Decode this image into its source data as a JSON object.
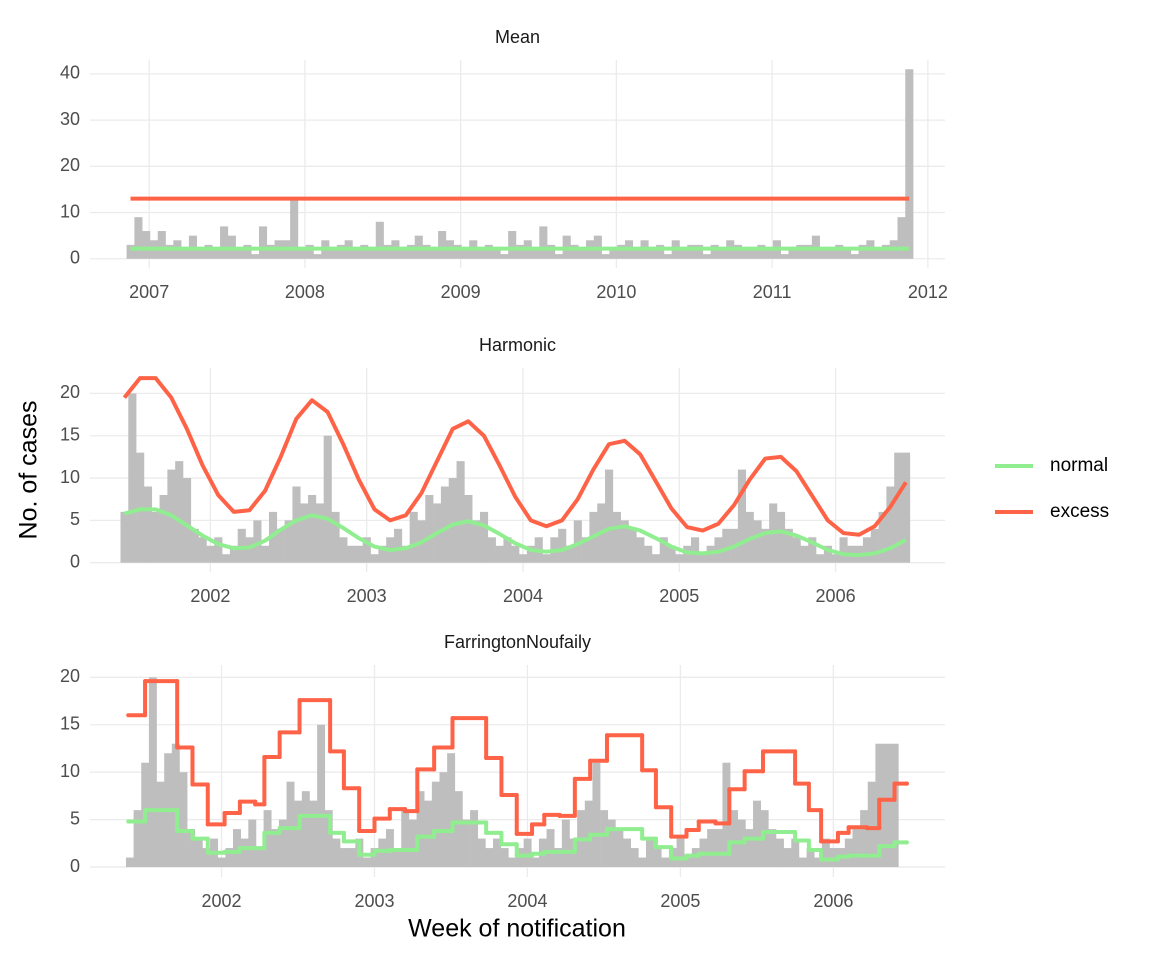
{
  "y_label": "No. of cases",
  "x_label": "Week of notification",
  "legend": [
    {
      "name": "normal",
      "color": "#90ee90"
    },
    {
      "name": "excess",
      "color": "#ff6347"
    }
  ],
  "chart_data": [
    {
      "type": "combo",
      "title": "Mean",
      "grid": true,
      "xlim": [
        2006.62,
        2012.11
      ],
      "xticks": [
        2007,
        2008,
        2009,
        2010,
        2011,
        2012
      ],
      "ylim": [
        -2,
        43
      ],
      "yticks": [
        0,
        10,
        20,
        30,
        40
      ],
      "bars": {
        "color": "#bebebe",
        "x": [
          2006.88,
          2006.93,
          2006.98,
          2007.03,
          2007.08,
          2007.13,
          2007.18,
          2007.23,
          2007.28,
          2007.33,
          2007.38,
          2007.43,
          2007.48,
          2007.53,
          2007.58,
          2007.63,
          2007.68,
          2007.73,
          2007.78,
          2007.83,
          2007.88,
          2007.93,
          2007.98,
          2008.03,
          2008.08,
          2008.13,
          2008.18,
          2008.23,
          2008.28,
          2008.33,
          2008.38,
          2008.43,
          2008.48,
          2008.53,
          2008.58,
          2008.63,
          2008.68,
          2008.73,
          2008.78,
          2008.83,
          2008.88,
          2008.93,
          2008.98,
          2009.03,
          2009.08,
          2009.13,
          2009.18,
          2009.23,
          2009.28,
          2009.33,
          2009.38,
          2009.43,
          2009.48,
          2009.53,
          2009.58,
          2009.63,
          2009.68,
          2009.73,
          2009.78,
          2009.83,
          2009.88,
          2009.93,
          2009.98,
          2010.03,
          2010.08,
          2010.13,
          2010.18,
          2010.23,
          2010.28,
          2010.33,
          2010.38,
          2010.43,
          2010.48,
          2010.53,
          2010.58,
          2010.63,
          2010.68,
          2010.73,
          2010.78,
          2010.83,
          2010.88,
          2010.93,
          2010.98,
          2011.03,
          2011.08,
          2011.13,
          2011.18,
          2011.23,
          2011.28,
          2011.33,
          2011.38,
          2011.43,
          2011.48,
          2011.53,
          2011.58,
          2011.63,
          2011.68,
          2011.73,
          2011.78,
          2011.83,
          2011.88
        ],
        "values": [
          3,
          9,
          6,
          4,
          6,
          3,
          4,
          2,
          5,
          2,
          3,
          2,
          7,
          5,
          2,
          3,
          1,
          7,
          3,
          4,
          4,
          13,
          2,
          3,
          1,
          4,
          2,
          3,
          4,
          2,
          3,
          2,
          8,
          3,
          4,
          2,
          3,
          5,
          3,
          2,
          6,
          4,
          3,
          2,
          4,
          2,
          3,
          2,
          1,
          6,
          3,
          4,
          2,
          7,
          3,
          1,
          5,
          3,
          2,
          4,
          5,
          1,
          2,
          3,
          4,
          2,
          4,
          2,
          3,
          1,
          4,
          2,
          3,
          3,
          1,
          3,
          2,
          4,
          3,
          2,
          2,
          3,
          2,
          4,
          1,
          2,
          3,
          3,
          5,
          2,
          2,
          3,
          2,
          1,
          3,
          4,
          2,
          3,
          4,
          9,
          41
        ]
      },
      "lines": [
        {
          "style": "line",
          "x": [
            2006.88,
            2011.88
          ],
          "values": [
            2.2,
            2.2
          ]
        },
        {
          "style": "line",
          "x": [
            2006.88,
            2011.88
          ],
          "values": [
            13,
            13
          ]
        }
      ]
    },
    {
      "type": "combo",
      "title": "Harmonic",
      "grid": true,
      "xlim": [
        2001.23,
        2006.7
      ],
      "xticks": [
        2002,
        2003,
        2004,
        2005,
        2006
      ],
      "ylim": [
        -1.1,
        23
      ],
      "yticks": [
        0,
        5,
        10,
        15,
        20
      ],
      "bars": {
        "color": "#bebebe",
        "x": [
          2001.45,
          2001.5,
          2001.55,
          2001.6,
          2001.65,
          2001.7,
          2001.75,
          2001.8,
          2001.85,
          2001.9,
          2001.95,
          2002.0,
          2002.05,
          2002.1,
          2002.15,
          2002.2,
          2002.25,
          2002.3,
          2002.35,
          2002.4,
          2002.45,
          2002.5,
          2002.55,
          2002.6,
          2002.65,
          2002.7,
          2002.75,
          2002.8,
          2002.85,
          2002.9,
          2002.95,
          2003.0,
          2003.05,
          2003.1,
          2003.15,
          2003.2,
          2003.25,
          2003.3,
          2003.35,
          2003.4,
          2003.45,
          2003.5,
          2003.55,
          2003.6,
          2003.65,
          2003.7,
          2003.75,
          2003.8,
          2003.85,
          2003.9,
          2003.95,
          2004.0,
          2004.05,
          2004.1,
          2004.15,
          2004.2,
          2004.25,
          2004.3,
          2004.35,
          2004.4,
          2004.45,
          2004.5,
          2004.55,
          2004.6,
          2004.65,
          2004.7,
          2004.75,
          2004.8,
          2004.85,
          2004.9,
          2004.95,
          2005.0,
          2005.05,
          2005.1,
          2005.15,
          2005.2,
          2005.25,
          2005.3,
          2005.35,
          2005.4,
          2005.45,
          2005.5,
          2005.55,
          2005.6,
          2005.65,
          2005.7,
          2005.75,
          2005.8,
          2005.85,
          2005.9,
          2005.95,
          2006.0,
          2006.05,
          2006.1,
          2006.15,
          2006.2,
          2006.25,
          2006.3,
          2006.35,
          2006.4,
          2006.45
        ],
        "values": [
          6,
          20,
          13,
          9,
          6,
          8,
          11,
          12,
          10,
          4,
          3,
          2,
          3,
          1,
          2,
          4,
          3,
          5,
          2,
          6,
          4,
          5,
          9,
          7,
          8,
          7,
          15,
          6,
          3,
          2,
          2,
          3,
          1,
          2,
          3,
          4,
          2,
          6,
          5,
          8,
          7,
          9,
          10,
          12,
          8,
          5,
          6,
          3,
          2,
          3,
          2,
          1,
          2,
          3,
          1,
          3,
          4,
          2,
          5,
          3,
          6,
          7,
          11,
          6,
          5,
          4,
          3,
          2,
          1,
          3,
          2,
          1,
          2,
          3,
          1,
          2,
          3,
          4,
          4,
          11,
          6,
          5,
          4,
          7,
          6,
          4,
          3,
          2,
          3,
          1,
          2,
          1,
          3,
          2,
          2,
          3,
          4,
          6,
          9,
          13,
          13
        ]
      },
      "lines": [
        {
          "style": "line",
          "x": [
            2001.45,
            2001.55,
            2001.65,
            2001.75,
            2001.85,
            2001.95,
            2002.05,
            2002.15,
            2002.25,
            2002.35,
            2002.45,
            2002.55,
            2002.65,
            2002.75,
            2002.85,
            2002.95,
            2003.05,
            2003.15,
            2003.25,
            2003.35,
            2003.45,
            2003.55,
            2003.65,
            2003.75,
            2003.85,
            2003.95,
            2004.05,
            2004.15,
            2004.25,
            2004.35,
            2004.45,
            2004.55,
            2004.65,
            2004.75,
            2004.85,
            2004.95,
            2005.05,
            2005.15,
            2005.25,
            2005.35,
            2005.45,
            2005.55,
            2005.65,
            2005.75,
            2005.85,
            2005.95,
            2006.05,
            2006.15,
            2006.25,
            2006.35,
            2006.45
          ],
          "values": [
            5.8,
            6.3,
            6.3,
            5.6,
            4.4,
            3.2,
            2.2,
            1.7,
            1.8,
            2.6,
            3.9,
            5.0,
            5.6,
            5.2,
            4.1,
            2.9,
            1.9,
            1.5,
            1.7,
            2.4,
            3.5,
            4.5,
            4.9,
            4.4,
            3.4,
            2.3,
            1.5,
            1.3,
            1.5,
            2.2,
            3.1,
            4.0,
            4.3,
            3.8,
            2.9,
            1.9,
            1.2,
            1.1,
            1.3,
            1.9,
            2.8,
            3.5,
            3.7,
            3.2,
            2.4,
            1.5,
            1.0,
            0.9,
            1.1,
            1.7,
            2.7
          ]
        },
        {
          "style": "line",
          "x": [
            2001.45,
            2001.55,
            2001.65,
            2001.75,
            2001.85,
            2001.95,
            2002.05,
            2002.15,
            2002.25,
            2002.35,
            2002.45,
            2002.55,
            2002.65,
            2002.75,
            2002.85,
            2002.95,
            2003.05,
            2003.15,
            2003.25,
            2003.35,
            2003.45,
            2003.55,
            2003.65,
            2003.75,
            2003.85,
            2003.95,
            2004.05,
            2004.15,
            2004.25,
            2004.35,
            2004.45,
            2004.55,
            2004.65,
            2004.75,
            2004.85,
            2004.95,
            2005.05,
            2005.15,
            2005.25,
            2005.35,
            2005.45,
            2005.55,
            2005.65,
            2005.75,
            2005.85,
            2005.95,
            2006.05,
            2006.15,
            2006.25,
            2006.35,
            2006.45
          ],
          "values": [
            19.5,
            21.8,
            21.8,
            19.5,
            15.8,
            11.5,
            8.0,
            6.0,
            6.2,
            8.5,
            12.5,
            17.0,
            19.2,
            17.8,
            14.0,
            9.8,
            6.3,
            5.0,
            5.6,
            8.2,
            12.0,
            15.8,
            16.7,
            15.0,
            11.5,
            7.8,
            5.0,
            4.3,
            5.0,
            7.5,
            11.0,
            14.0,
            14.4,
            12.8,
            9.6,
            6.4,
            4.2,
            3.8,
            4.6,
            6.8,
            9.8,
            12.3,
            12.5,
            10.8,
            7.9,
            5.0,
            3.5,
            3.3,
            4.3,
            6.6,
            9.5
          ]
        }
      ]
    },
    {
      "type": "combo",
      "title": "FarringtonNoufaily",
      "grid": true,
      "xlim": [
        2001.14,
        2006.73
      ],
      "xticks": [
        2002,
        2003,
        2004,
        2005,
        2006
      ],
      "ylim": [
        -1.05,
        21.3
      ],
      "yticks": [
        0,
        5,
        10,
        15,
        20
      ],
      "bars": {
        "color": "#bebebe",
        "x": [
          2001.4,
          2001.45,
          2001.5,
          2001.55,
          2001.6,
          2001.65,
          2001.7,
          2001.75,
          2001.8,
          2001.85,
          2001.9,
          2001.95,
          2002.0,
          2002.05,
          2002.1,
          2002.15,
          2002.2,
          2002.25,
          2002.3,
          2002.35,
          2002.4,
          2002.45,
          2002.5,
          2002.55,
          2002.6,
          2002.65,
          2002.7,
          2002.75,
          2002.8,
          2002.85,
          2002.9,
          2002.95,
          2003.0,
          2003.05,
          2003.1,
          2003.15,
          2003.2,
          2003.25,
          2003.3,
          2003.35,
          2003.4,
          2003.45,
          2003.5,
          2003.55,
          2003.6,
          2003.65,
          2003.7,
          2003.75,
          2003.8,
          2003.85,
          2003.9,
          2003.95,
          2004.0,
          2004.05,
          2004.1,
          2004.15,
          2004.2,
          2004.25,
          2004.3,
          2004.35,
          2004.4,
          2004.45,
          2004.5,
          2004.55,
          2004.6,
          2004.65,
          2004.7,
          2004.75,
          2004.8,
          2004.85,
          2004.9,
          2004.95,
          2005.0,
          2005.05,
          2005.1,
          2005.15,
          2005.2,
          2005.25,
          2005.3,
          2005.35,
          2005.4,
          2005.45,
          2005.5,
          2005.55,
          2005.6,
          2005.65,
          2005.7,
          2005.75,
          2005.8,
          2005.85,
          2005.9,
          2005.95,
          2006.0,
          2006.05,
          2006.1,
          2006.15,
          2006.2,
          2006.25,
          2006.3,
          2006.35,
          2006.4
        ],
        "values": [
          1,
          6,
          11,
          20,
          9,
          12,
          13,
          10,
          4,
          3,
          2,
          3,
          1,
          2,
          4,
          3,
          5,
          2,
          6,
          4,
          5,
          9,
          7,
          8,
          7,
          15,
          6,
          3,
          2,
          2,
          3,
          1,
          2,
          3,
          4,
          2,
          6,
          5,
          8,
          7,
          9,
          10,
          12,
          8,
          5,
          6,
          3,
          2,
          3,
          2,
          1,
          2,
          3,
          1,
          3,
          4,
          2,
          5,
          3,
          6,
          7,
          11,
          6,
          5,
          4,
          3,
          2,
          1,
          3,
          2,
          1,
          2,
          3,
          1,
          2,
          3,
          4,
          4,
          11,
          6,
          5,
          4,
          7,
          6,
          4,
          3,
          2,
          3,
          1,
          2,
          1,
          3,
          2,
          2,
          3,
          4,
          6,
          9,
          13,
          13,
          13
        ]
      },
      "lines": [
        {
          "style": "step",
          "x": [
            2001.39,
            2001.5,
            2001.71,
            2001.81,
            2001.91,
            2002.02,
            2002.12,
            2002.22,
            2002.28,
            2002.38,
            2002.51,
            2002.71,
            2002.8,
            2002.9,
            2003.0,
            2003.1,
            2003.2,
            2003.28,
            2003.39,
            2003.51,
            2003.73,
            2003.83,
            2003.93,
            2004.03,
            2004.11,
            2004.21,
            2004.31,
            2004.41,
            2004.52,
            2004.75,
            2004.84,
            2004.94,
            2005.04,
            2005.12,
            2005.23,
            2005.32,
            2005.42,
            2005.54,
            2005.75,
            2005.84,
            2005.92,
            2006.03,
            2006.1,
            2006.22,
            2006.3,
            2006.4,
            2006.48
          ],
          "values": [
            4.8,
            6.0,
            3.8,
            3.0,
            1.5,
            1.6,
            2.0,
            2.0,
            3.6,
            4.1,
            5.4,
            3.6,
            2.7,
            1.3,
            1.7,
            1.8,
            1.8,
            3.2,
            3.8,
            4.7,
            3.6,
            2.4,
            1.2,
            1.4,
            1.6,
            1.6,
            2.9,
            3.4,
            4.0,
            3.0,
            2.1,
            0.9,
            1.2,
            1.4,
            1.4,
            2.6,
            3.0,
            3.7,
            2.8,
            1.8,
            0.8,
            1.1,
            1.2,
            1.2,
            2.2,
            2.6,
            2.6
          ]
        },
        {
          "style": "step",
          "x": [
            2001.39,
            2001.5,
            2001.71,
            2001.81,
            2001.91,
            2002.02,
            2002.12,
            2002.22,
            2002.28,
            2002.38,
            2002.51,
            2002.71,
            2002.8,
            2002.9,
            2003.0,
            2003.1,
            2003.2,
            2003.28,
            2003.39,
            2003.51,
            2003.73,
            2003.83,
            2003.93,
            2004.03,
            2004.11,
            2004.21,
            2004.31,
            2004.41,
            2004.52,
            2004.75,
            2004.84,
            2004.94,
            2005.04,
            2005.12,
            2005.23,
            2005.32,
            2005.42,
            2005.54,
            2005.75,
            2005.84,
            2005.92,
            2006.03,
            2006.1,
            2006.22,
            2006.3,
            2006.4,
            2006.48
          ],
          "values": [
            16,
            19.6,
            12.6,
            8.7,
            4.5,
            5.7,
            6.9,
            6.6,
            11.6,
            14.2,
            17.6,
            12.2,
            8.3,
            3.8,
            5.1,
            6.1,
            5.9,
            10.3,
            12.6,
            15.7,
            11.5,
            7.6,
            3.5,
            4.5,
            5.5,
            5.4,
            9.3,
            11.2,
            13.9,
            10.2,
            6.3,
            3.2,
            3.9,
            4.8,
            4.6,
            8.2,
            10.1,
            12.2,
            8.8,
            6.0,
            2.7,
            3.6,
            4.2,
            4.1,
            7.1,
            8.8,
            8.8
          ]
        }
      ]
    }
  ]
}
